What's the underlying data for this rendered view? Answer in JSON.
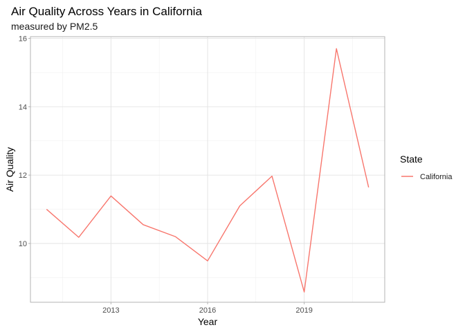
{
  "chart_data": {
    "type": "line",
    "title": "Air Quality Across Years in California",
    "subtitle": "measured by PM2.5",
    "xlabel": "Year",
    "ylabel": "Air Quality",
    "x_ticks": [
      2013,
      2016,
      2019
    ],
    "y_ticks": [
      10,
      12,
      14,
      16
    ],
    "xlim": [
      2010.5,
      2021.5
    ],
    "ylim": [
      8.28,
      16.05
    ],
    "grid": true,
    "legend": {
      "title": "State",
      "placement": "right"
    },
    "series": [
      {
        "name": "California",
        "color": "#F8766D",
        "x": [
          2011,
          2012,
          2013,
          2014,
          2015,
          2016,
          2017,
          2018,
          2019,
          2020,
          2021
        ],
        "y": [
          11.0,
          10.18,
          11.39,
          10.55,
          10.2,
          9.49,
          11.1,
          11.97,
          8.58,
          15.7,
          11.64
        ]
      }
    ]
  }
}
